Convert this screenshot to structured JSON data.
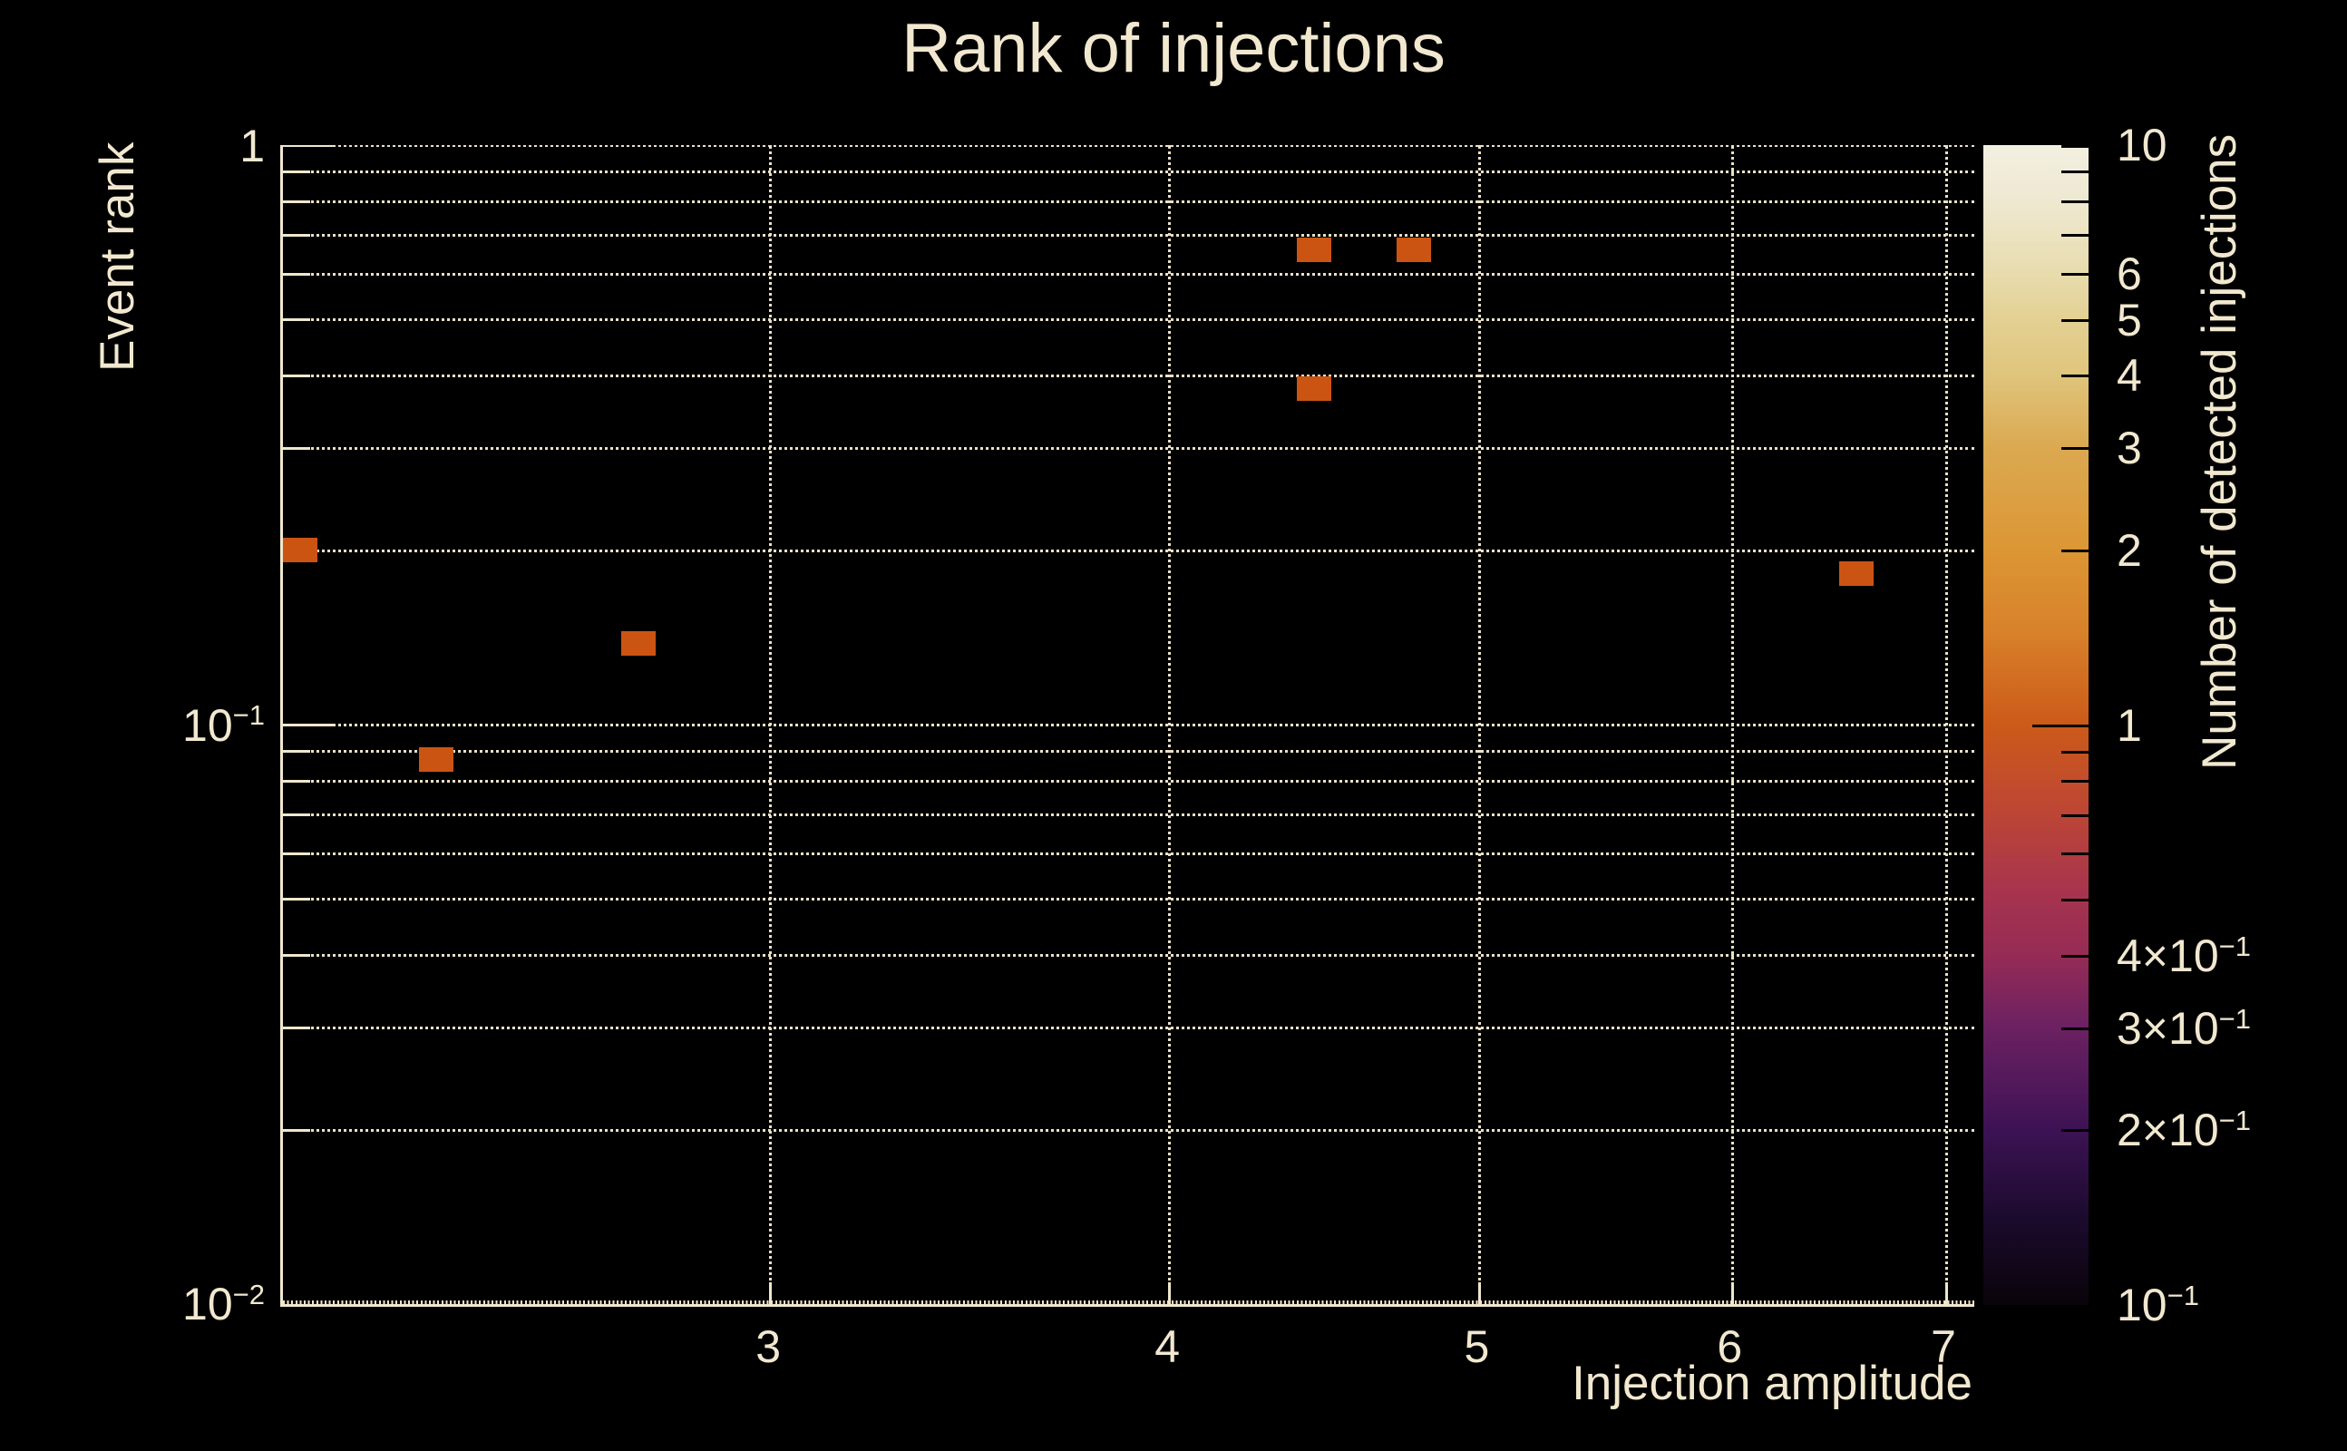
{
  "title": "Rank of injections",
  "colors": {
    "background": "#000000",
    "text": "#F1E8CF",
    "axis": "#F0E7CC",
    "grid": "#EAE1C6",
    "marker": "#CC5413",
    "colorbar_tick": "#000000"
  },
  "chart_data": {
    "type": "heatmap",
    "title": "Rank of injections",
    "xlabel": "Injection amplitude",
    "ylabel": "Event rank",
    "colorbar_label": "Number of detected injections",
    "x_scale": "log",
    "y_scale": "log",
    "z_scale": "log",
    "xlim": [
      2.113,
      7.143
    ],
    "ylim": [
      0.01,
      1
    ],
    "zlim": [
      0.1,
      10
    ],
    "grid": true,
    "legend_position": "right-colorbar",
    "points": [
      {
        "x": 2.14,
        "y": 0.2,
        "n": 1
      },
      {
        "x": 2.36,
        "y": 0.087,
        "n": 1
      },
      {
        "x": 2.73,
        "y": 0.138,
        "n": 1
      },
      {
        "x": 4.44,
        "y": 0.66,
        "n": 1
      },
      {
        "x": 4.77,
        "y": 0.66,
        "n": 1
      },
      {
        "x": 4.44,
        "y": 0.38,
        "n": 1
      },
      {
        "x": 6.56,
        "y": 0.182,
        "n": 1
      }
    ],
    "x_ticks": [
      {
        "v": 3,
        "label": "3"
      },
      {
        "v": 4,
        "label": "4"
      },
      {
        "v": 5,
        "label": "5"
      },
      {
        "v": 6,
        "label": "6"
      },
      {
        "v": 7,
        "label": "7"
      }
    ],
    "y_ticks": [
      {
        "v": 1,
        "label": "1",
        "exp": ""
      },
      {
        "v": 0.1,
        "label": "10",
        "exp": "−1"
      },
      {
        "v": 0.01,
        "label": "10",
        "exp": "−2"
      }
    ],
    "y_major_grid": [
      1,
      0.1
    ],
    "y_minor_grid": [
      0.9,
      0.8,
      0.7,
      0.6,
      0.5,
      0.4,
      0.3,
      0.2,
      0.09,
      0.08,
      0.07,
      0.06,
      0.05,
      0.04,
      0.03,
      0.02
    ],
    "colorbar": {
      "tick_labels": [
        {
          "v": 10,
          "label": "10",
          "exp": ""
        },
        {
          "v": 6,
          "label": "6",
          "exp": ""
        },
        {
          "v": 5,
          "label": "5",
          "exp": ""
        },
        {
          "v": 4,
          "label": "4",
          "exp": ""
        },
        {
          "v": 3,
          "label": "3",
          "exp": ""
        },
        {
          "v": 2,
          "label": "2",
          "exp": ""
        },
        {
          "v": 1,
          "label": "1",
          "exp": ""
        },
        {
          "v": 0.4,
          "label": "4×10",
          "exp": "−1"
        },
        {
          "v": 0.3,
          "label": "3×10",
          "exp": "−1"
        },
        {
          "v": 0.2,
          "label": "2×10",
          "exp": "−1"
        },
        {
          "v": 0.1,
          "label": "10",
          "exp": "−1"
        }
      ],
      "ticks_short": [
        10,
        9,
        8,
        7,
        6,
        5,
        4,
        3,
        2,
        0.9,
        0.8,
        0.7,
        0.6,
        0.5,
        0.4,
        0.3,
        0.2
      ],
      "ticks_long": [
        1
      ],
      "gradient": [
        {
          "p": 0,
          "c": "#F3F0E2"
        },
        {
          "p": 5,
          "c": "#EEE8D0"
        },
        {
          "p": 11,
          "c": "#E8DCAE"
        },
        {
          "p": 15,
          "c": "#E3D193"
        },
        {
          "p": 20,
          "c": "#DFC47B"
        },
        {
          "p": 26,
          "c": "#DBA951"
        },
        {
          "p": 35,
          "c": "#DC9634"
        },
        {
          "p": 42,
          "c": "#D8812A"
        },
        {
          "p": 50,
          "c": "#CC5A19"
        },
        {
          "p": 57,
          "c": "#BE4733"
        },
        {
          "p": 65,
          "c": "#A53350"
        },
        {
          "p": 70,
          "c": "#952B55"
        },
        {
          "p": 76,
          "c": "#6C2162"
        },
        {
          "p": 85,
          "c": "#3C1254"
        },
        {
          "p": 93,
          "c": "#1A0A2B"
        },
        {
          "p": 100,
          "c": "#090409"
        }
      ]
    }
  }
}
